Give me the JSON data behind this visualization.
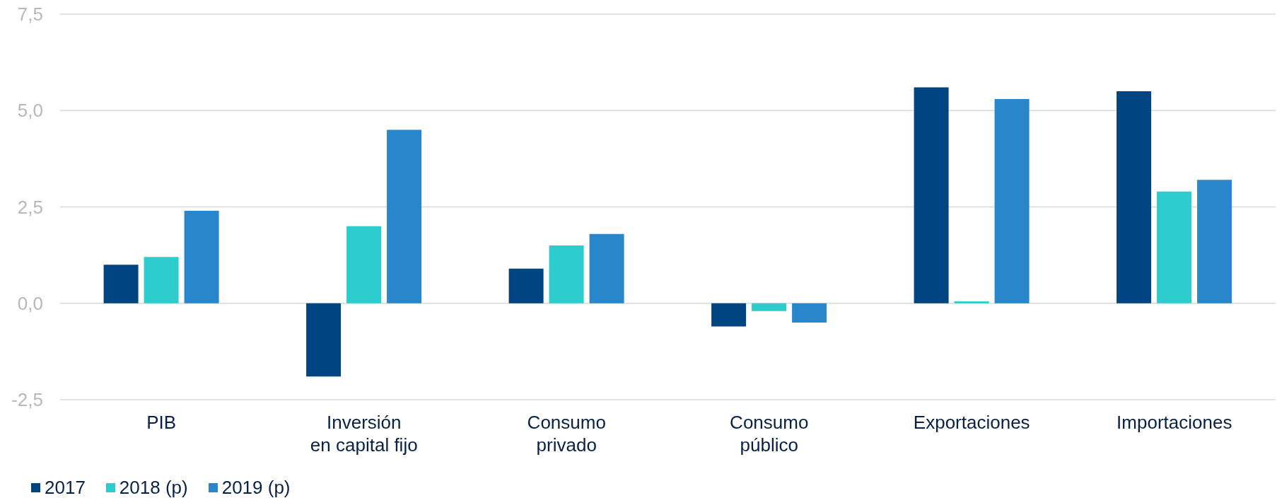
{
  "chart_data": {
    "type": "bar",
    "categories": [
      "PIB",
      "Inversión\nen capital fijo",
      "Consumo\nprivado",
      "Consumo\npúblico",
      "Exportaciones",
      "Importaciones"
    ],
    "series": [
      {
        "name": "2017",
        "color": "#004481",
        "values": [
          1.0,
          -1.9,
          0.9,
          -0.6,
          5.6,
          5.5
        ]
      },
      {
        "name": "2018 (p)",
        "color": "#2dcccd",
        "values": [
          1.2,
          2.0,
          1.5,
          -0.2,
          0.05,
          2.9
        ]
      },
      {
        "name": "2019 (p)",
        "color": "#2a86ca",
        "values": [
          2.4,
          4.5,
          1.8,
          -0.5,
          5.3,
          3.2
        ]
      }
    ],
    "ylim": [
      -2.5,
      7.5
    ],
    "yticks": [
      {
        "value": -2.5,
        "label": "-2,5"
      },
      {
        "value": 0,
        "label": "0,0"
      },
      {
        "value": 2.5,
        "label": "2,5"
      },
      {
        "value": 5,
        "label": "5,0"
      },
      {
        "value": 7.5,
        "label": "7,5"
      }
    ],
    "grid": "y",
    "legend": "bottom left"
  }
}
